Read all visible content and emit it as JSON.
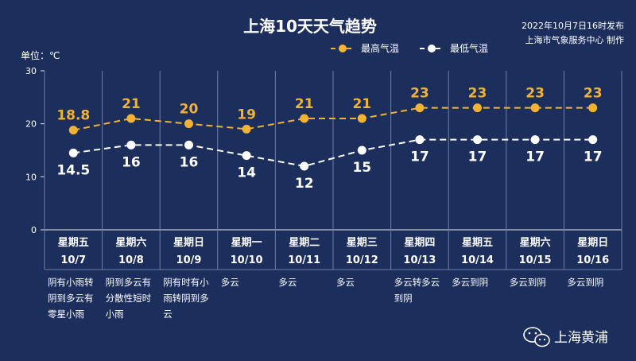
{
  "header": {
    "title": "上海10天天气趋势",
    "issue_time": "2022年10月7日16时发布",
    "producer": "上海市气象服务中心 制作"
  },
  "watermark": "上海黄浦",
  "colors": {
    "background": "#1c2e5c",
    "high": "#f2b233",
    "low": "#ffffff",
    "axis": "#e6e9f2",
    "grid": "#6f7fa6"
  },
  "chart_data": {
    "type": "line",
    "yunit": "单位：℃",
    "ylim": [
      0,
      30
    ],
    "yticks": [
      0,
      10,
      20,
      30
    ],
    "days": [
      {
        "weekday": "星期五",
        "date": "10/7",
        "desc": [
          "阴有小雨转",
          "阴到多云有",
          "零星小雨"
        ]
      },
      {
        "weekday": "星期六",
        "date": "10/8",
        "desc": [
          "阴到多云有",
          "分散性短时",
          "小雨"
        ]
      },
      {
        "weekday": "星期日",
        "date": "10/9",
        "desc": [
          "阴有时有小",
          "雨转阴到多",
          "云"
        ]
      },
      {
        "weekday": "星期一",
        "date": "10/10",
        "desc": [
          "多云"
        ]
      },
      {
        "weekday": "星期二",
        "date": "10/11",
        "desc": [
          "多云"
        ]
      },
      {
        "weekday": "星期三",
        "date": "10/12",
        "desc": [
          "多云"
        ]
      },
      {
        "weekday": "星期四",
        "date": "10/13",
        "desc": [
          "多云转多云",
          "到阴"
        ]
      },
      {
        "weekday": "星期五",
        "date": "10/14",
        "desc": [
          "多云到阴"
        ]
      },
      {
        "weekday": "星期六",
        "date": "10/15",
        "desc": [
          "多云到阴"
        ]
      },
      {
        "weekday": "星期日",
        "date": "10/16",
        "desc": [
          "多云到阴"
        ]
      }
    ],
    "series": [
      {
        "name": "最高气温",
        "values": [
          18.8,
          21,
          20,
          19,
          21,
          21,
          23,
          23,
          23,
          23
        ]
      },
      {
        "name": "最低气温",
        "values": [
          14.5,
          16,
          16,
          14,
          12,
          15,
          17,
          17,
          17,
          17
        ]
      }
    ],
    "legend_position": "top-right"
  }
}
